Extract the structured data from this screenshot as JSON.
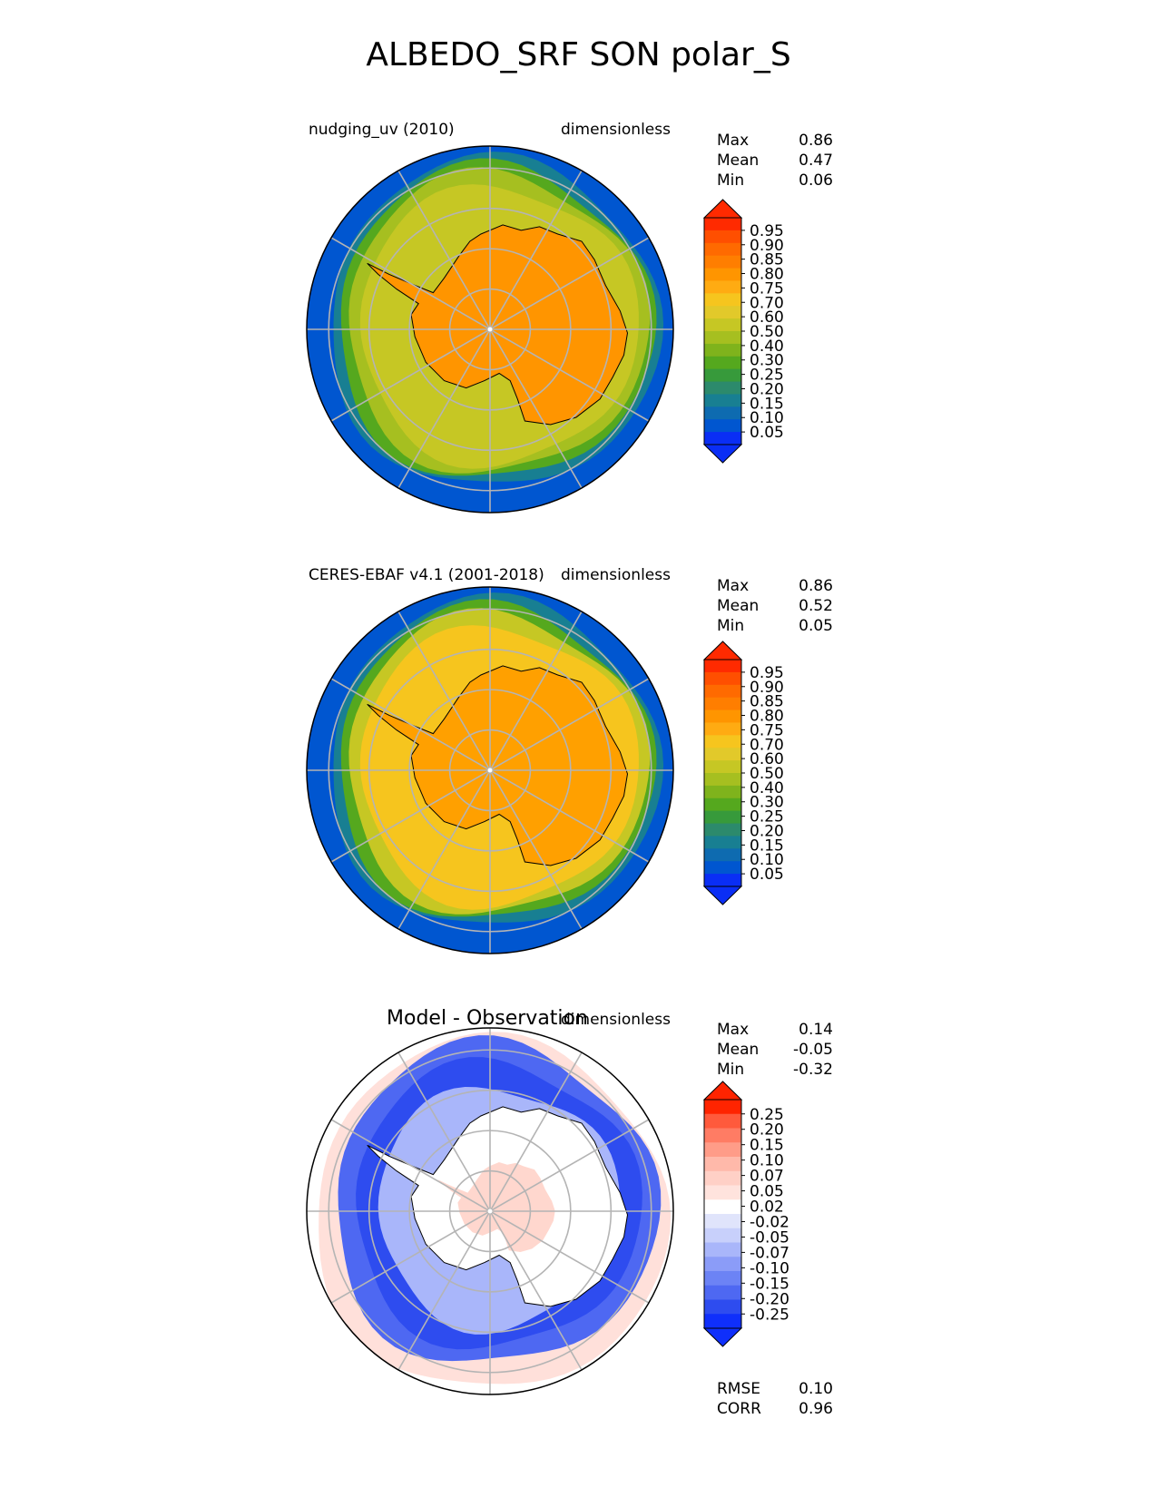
{
  "title": "ALBEDO_SRF SON polar_S",
  "colorbars": {
    "albedo": {
      "labels": [
        "0.95",
        "0.90",
        "0.85",
        "0.80",
        "0.75",
        "0.70",
        "0.60",
        "0.50",
        "0.40",
        "0.30",
        "0.25",
        "0.20",
        "0.15",
        "0.10",
        "0.05"
      ],
      "colors": [
        "#ff2a00",
        "#ff4f00",
        "#ff6a00",
        "#ff7e00",
        "#ff9500",
        "#ffab12",
        "#f6c51e",
        "#e2c92a",
        "#c6c724",
        "#a6bf20",
        "#7fb31c",
        "#55a81e",
        "#379a3b",
        "#2c8a6c",
        "#187f92",
        "#0e6bb0",
        "#0056d0",
        "#0a2ef5"
      ],
      "ext_top": "#ff2a00",
      "ext_bottom": "#0a2ef5"
    },
    "diff": {
      "labels": [
        "0.25",
        "0.20",
        "0.15",
        "0.10",
        "0.07",
        "0.05",
        "0.02",
        "-0.02",
        "-0.05",
        "-0.07",
        "-0.10",
        "-0.15",
        "-0.20",
        "-0.25"
      ],
      "colors": [
        "#ff2400",
        "#ff5a3c",
        "#ff7c64",
        "#ff9c88",
        "#ffb9aa",
        "#ffd0c6",
        "#ffe3dd",
        "#ffffff",
        "#e0e4fb",
        "#c8d0fb",
        "#a9b6fa",
        "#8b9cf8",
        "#6c83f5",
        "#4e68f2",
        "#2e4cef",
        "#0f2ffb"
      ],
      "ext_top": "#ff2400",
      "ext_bottom": "#0f2ffb"
    }
  },
  "panels": [
    {
      "left_label": "nudging_uv (2010)",
      "right_label": "dimensionless",
      "stats": [
        {
          "label": "Max",
          "value": "0.86"
        },
        {
          "label": "Mean",
          "value": "0.47"
        },
        {
          "label": "Min",
          "value": "0.06"
        }
      ],
      "colors": {
        "ocean": "#0056d0",
        "ring1": "#187f92",
        "ring2": "#55a81e",
        "ring3": "#a6bf20",
        "seaice": "#c6c724",
        "land": "#ff9500"
      }
    },
    {
      "left_label": "CERES-EBAF v4.1 (2001-2018)",
      "right_label": "dimensionless",
      "stats": [
        {
          "label": "Max",
          "value": "0.86"
        },
        {
          "label": "Mean",
          "value": "0.52"
        },
        {
          "label": "Min",
          "value": "0.05"
        }
      ],
      "colors": {
        "ocean": "#0056d0",
        "ring1": "#187f92",
        "ring2": "#55a81e",
        "ring3": "#c6c724",
        "seaice": "#f6c51e",
        "land": "#ffa000"
      }
    },
    {
      "title": "Model - Observation",
      "right_label": "dimensionless",
      "stats": [
        {
          "label": "Max",
          "value": "0.14"
        },
        {
          "label": "Mean",
          "value": "-0.05"
        },
        {
          "label": "Min",
          "value": "-0.32"
        }
      ],
      "extra_stats": [
        {
          "label": "RMSE",
          "value": "0.10"
        },
        {
          "label": "CORR",
          "value": "0.96"
        }
      ],
      "colors": {
        "ocean": "#ffffff",
        "outer_pink": "#ffe0da",
        "ring1": "#4e68f2",
        "ring2": "#2e4cef",
        "inner_pale": "#a9b6fa",
        "land": "#ffffff",
        "land_pink": "#ffd0c6"
      }
    }
  ],
  "chart_data": {
    "type": "heatmap",
    "title": "ALBEDO_SRF SON polar_S",
    "projection": "south polar stereographic",
    "units": "dimensionless",
    "panels": [
      {
        "name": "nudging_uv (2010)",
        "max": 0.86,
        "mean": 0.47,
        "min": 0.06,
        "contour_levels": [
          0.05,
          0.1,
          0.15,
          0.2,
          0.25,
          0.3,
          0.4,
          0.5,
          0.6,
          0.7,
          0.75,
          0.8,
          0.85,
          0.9,
          0.95
        ]
      },
      {
        "name": "CERES-EBAF v4.1 (2001-2018)",
        "max": 0.86,
        "mean": 0.52,
        "min": 0.05,
        "contour_levels": [
          0.05,
          0.1,
          0.15,
          0.2,
          0.25,
          0.3,
          0.4,
          0.5,
          0.6,
          0.7,
          0.75,
          0.8,
          0.85,
          0.9,
          0.95
        ]
      },
      {
        "name": "Model - Observation",
        "max": 0.14,
        "mean": -0.05,
        "min": -0.32,
        "rmse": 0.1,
        "corr": 0.96,
        "contour_levels": [
          -0.25,
          -0.2,
          -0.15,
          -0.1,
          -0.07,
          -0.05,
          -0.02,
          0.02,
          0.05,
          0.07,
          0.1,
          0.15,
          0.2,
          0.25
        ]
      }
    ]
  }
}
